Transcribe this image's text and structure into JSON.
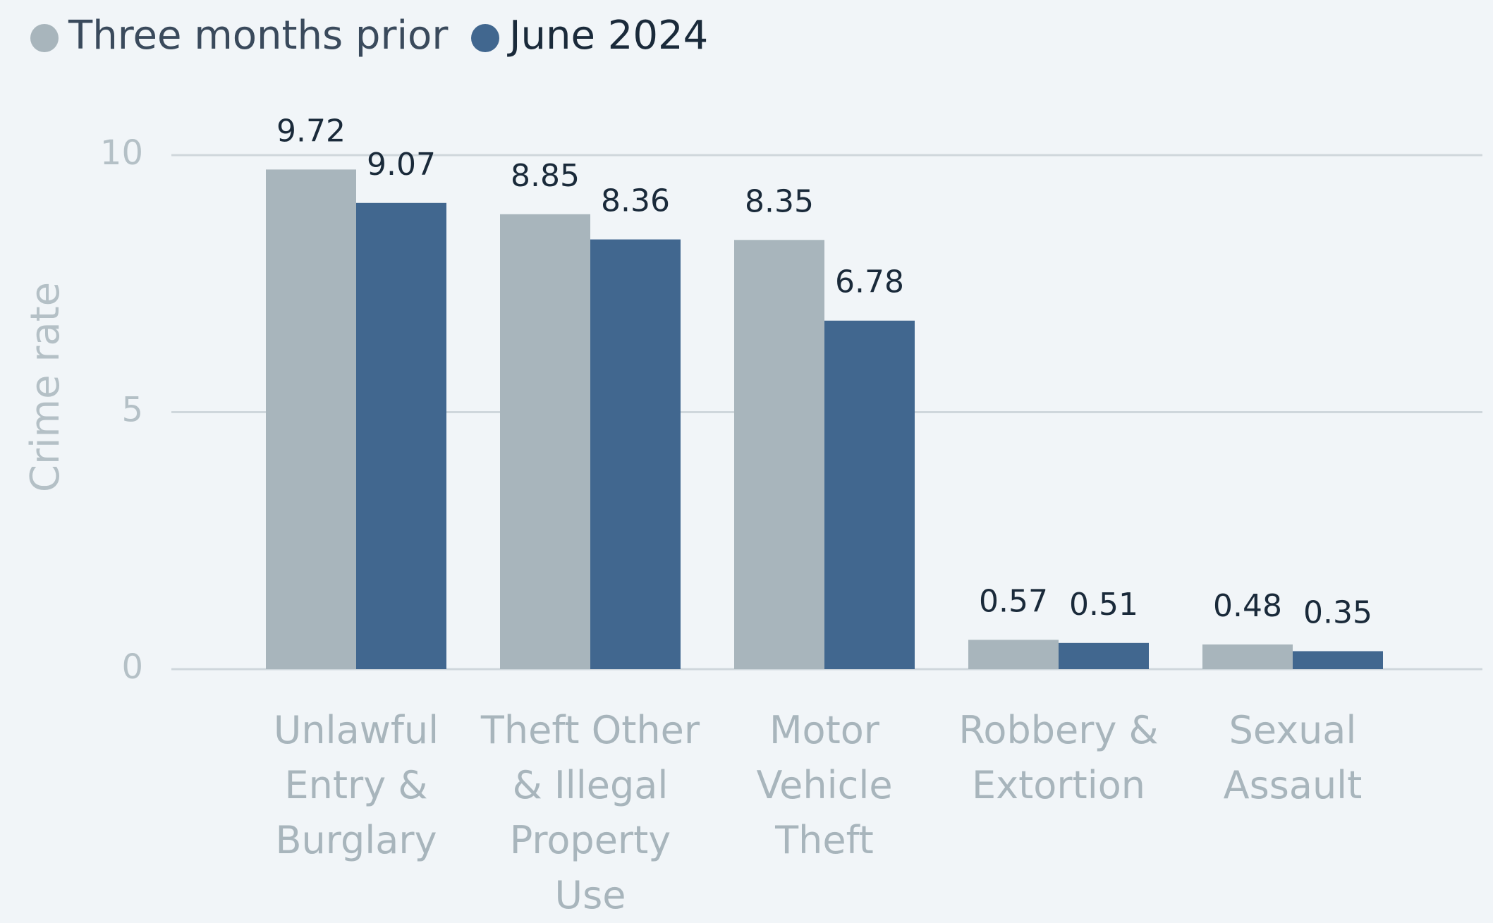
{
  "chart_data": {
    "type": "bar",
    "y_label": "Crime rate",
    "categories": [
      "Unlawful\nEntry &\nBurglary",
      "Theft Other\n& Illegal\nProperty\nUse",
      "Motor\nVehicle\nTheft",
      "Robbery &\nExtortion",
      "Sexual\nAssault"
    ],
    "series": [
      {
        "name": "Three months prior",
        "color": "#a8b5bc",
        "values": [
          9.72,
          8.85,
          8.35,
          0.57,
          0.48
        ]
      },
      {
        "name": "June 2024",
        "color": "#41678f",
        "values": [
          9.07,
          8.36,
          6.78,
          0.51,
          0.35
        ]
      }
    ],
    "ylim": [
      0,
      10
    ],
    "yticks": [
      0,
      5,
      10
    ],
    "grid": true,
    "legend": "top-left"
  }
}
